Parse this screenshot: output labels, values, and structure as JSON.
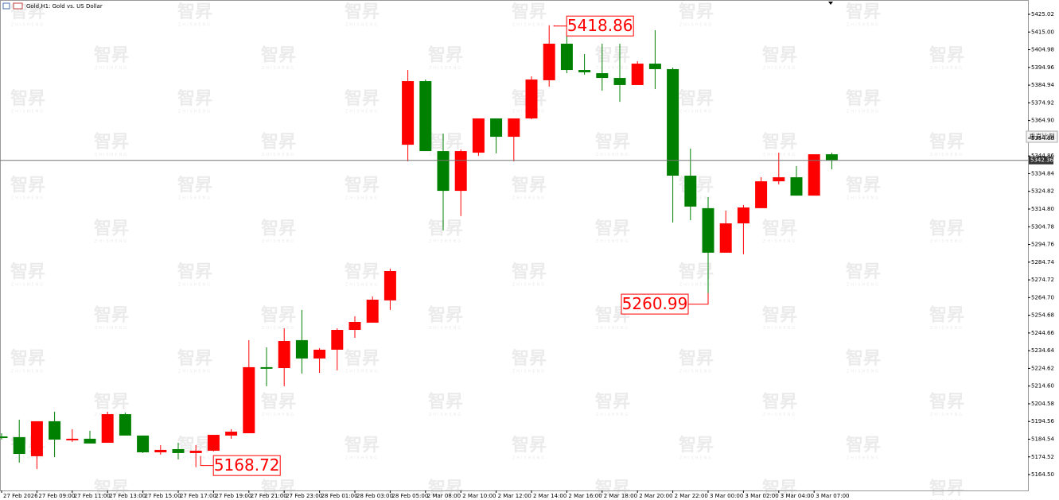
{
  "chart_data": {
    "type": "candlestick",
    "title": "Gold,H1: Gold vs. US Dollar",
    "categories": [
      "27 Feb 2026",
      null,
      "27 Feb 09:00",
      null,
      "27 Feb 11:00",
      null,
      "27 Feb 13:00",
      null,
      "27 Feb 15:00",
      null,
      "27 Feb 17:00",
      null,
      "27 Feb 19:00",
      null,
      "27 Feb 21:00",
      null,
      "27 Feb 23:00",
      null,
      "28 Feb 01:00",
      null,
      "28 Feb 03:00",
      null,
      "28 Feb 05:00",
      null,
      "2 Mar 08:00",
      null,
      "2 Mar 10:00",
      null,
      "2 Mar 12:00",
      null,
      "2 Mar 14:00",
      null,
      "2 Mar 16:00",
      null,
      "2 Mar 18:00",
      null,
      "2 Mar 20:00",
      null,
      "2 Mar 22:00",
      null,
      "3 Mar 00:00",
      null,
      "3 Mar 02:00",
      null,
      "3 Mar 04:00",
      null,
      "3 Mar 07:00",
      null
    ],
    "open": [
      5186.1,
      5185.7,
      5174.9,
      5194.7,
      5183.9,
      5184.8,
      5182.5,
      5198.7,
      5186.6,
      5177.1,
      5178.9,
      5176.7,
      5178.0,
      5186.6,
      5187.9,
      5225.3,
      5224.8,
      5240.6,
      5230.2,
      5235.2,
      5246.4,
      5250.5,
      5263.1,
      5351.2,
      5387.2,
      5347.6,
      5325.1,
      5346.7,
      5366.1,
      5355.7,
      5366.1,
      5387.7,
      5408.4,
      5393.5,
      5391.7,
      5389.0,
      5385.0,
      5397.1,
      5394.0,
      5333.7,
      5315.3,
      5290.1,
      5306.7,
      5315.3,
      5330.5,
      5332.8,
      5322.4,
      5345.8
    ],
    "high": [
      5187.9,
      5195.6,
      5194.7,
      5200.1,
      5190.2,
      5189.3,
      5200.1,
      5199.6,
      5186.6,
      5181.2,
      5182.5,
      5181.2,
      5187.0,
      5190.2,
      5240.6,
      5236.5,
      5247.3,
      5257.7,
      5236.1,
      5247.3,
      5254.1,
      5265.3,
      5281.1,
      5393.5,
      5388.1,
      5357.5,
      5348.5,
      5366.1,
      5366.1,
      5366.1,
      5389.9,
      5418.86,
      5415.1,
      5402.5,
      5408.4,
      5408.4,
      5398.5,
      5416.0,
      5394.9,
      5349.0,
      5321.6,
      5313.9,
      5317.1,
      5332.8,
      5346.7,
      5339.1,
      5345.8,
      5346.7
    ],
    "low": [
      5184.3,
      5171.3,
      5167.7,
      5174.4,
      5183.0,
      5182.1,
      5182.5,
      5186.6,
      5176.7,
      5175.8,
      5173.1,
      5168.72,
      5177.6,
      5184.8,
      5187.9,
      5214.5,
      5214.5,
      5221.7,
      5222.1,
      5223.5,
      5241.9,
      5250.5,
      5257.7,
      5341.8,
      5347.6,
      5302.7,
      5310.8,
      5344.9,
      5346.3,
      5341.8,
      5365.6,
      5384.1,
      5391.7,
      5390.8,
      5381.8,
      5375.5,
      5385.0,
      5382.7,
      5307.2,
      5308.5,
      5260.99,
      5290.1,
      5289.2,
      5315.3,
      5328.7,
      5322.4,
      5322.4,
      5337.3
    ],
    "close": [
      5185.2,
      5176.2,
      5194.7,
      5184.3,
      5184.8,
      5182.1,
      5198.7,
      5186.6,
      5177.1,
      5178.5,
      5176.7,
      5178.0,
      5187.0,
      5188.8,
      5225.3,
      5224.4,
      5240.1,
      5230.2,
      5235.2,
      5246.4,
      5250.9,
      5263.5,
      5279.7,
      5387.2,
      5347.6,
      5325.1,
      5347.6,
      5366.1,
      5355.7,
      5366.1,
      5388.1,
      5408.4,
      5393.5,
      5392.2,
      5389.0,
      5385.0,
      5397.1,
      5394.0,
      5333.7,
      5316.2,
      5290.1,
      5306.7,
      5315.7,
      5330.5,
      5332.8,
      5322.4,
      5345.8,
      5342.36
    ],
    "up_color": "#ff0000",
    "down_color": "#008000",
    "ylim": [
      5155.52,
      5433.12
    ],
    "yticks": [
      5425.02,
      {
        "value": 5415,
        "label": "5415.00"
      },
      5404.98,
      5394.96,
      5384.94,
      5374.92,
      {
        "value": 5364.9,
        "label": "5364.90"
      },
      5354.88,
      5344.86,
      5334.84,
      5324.82,
      {
        "value": 5314.8,
        "label": "5314.80"
      },
      5304.78,
      5294.76,
      5284.74,
      5274.72,
      {
        "value": 5264.7,
        "label": "5264.70"
      },
      5254.68,
      5244.66,
      5234.64,
      5224.62,
      {
        "value": 5214.6,
        "label": "5214.60"
      },
      5204.58,
      5194.56,
      5184.54,
      5174.52,
      {
        "value": 5164.5,
        "label": "5164.50"
      }
    ],
    "last_price": 5342.36,
    "annotations": [
      {
        "value": 5418.86,
        "label": "5418.86"
      },
      {
        "value": 5168.72,
        "label": "5168.72"
      },
      {
        "value": 5260.99,
        "label": "5260.99"
      }
    ]
  },
  "button": "垂直比例",
  "watermark": {
    "logo": "智昇",
    "sub": "ZHISHENG"
  }
}
